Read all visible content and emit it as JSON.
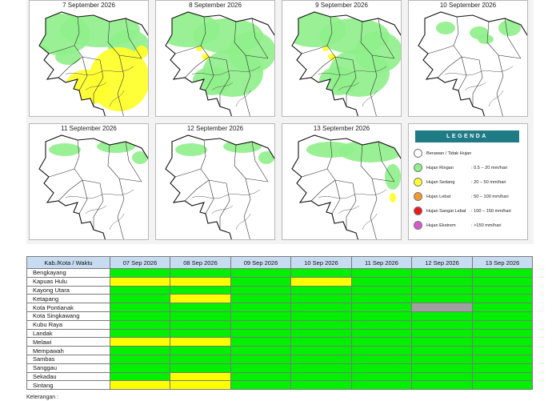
{
  "maps": [
    {
      "date": "7 September 2026",
      "level": "high"
    },
    {
      "date": "8 September 2026",
      "level": "mid"
    },
    {
      "date": "9 September 2026",
      "level": "mid"
    },
    {
      "date": "10 September 2026",
      "level": "low"
    },
    {
      "date": "11 September 2026",
      "level": "min"
    },
    {
      "date": "12 September 2026",
      "level": "min"
    },
    {
      "date": "13 September 2026",
      "level": "lowmid"
    }
  ],
  "legend": {
    "title": "LEGENDA",
    "items": [
      {
        "label": "Berawan / Tidak Hujan",
        "range": "",
        "color": "#ffffff"
      },
      {
        "label": "Hujan Ringan",
        "range": ": 0.5 – 20 mm/hari",
        "color": "#8ff08a"
      },
      {
        "label": "Hujan Sedang",
        "range": ": 20 – 50 mm/hari",
        "color": "#ffff2e"
      },
      {
        "label": "Hujan Lebat",
        "range": ": 50 – 100 mm/hari",
        "color": "#f59a2a"
      },
      {
        "label": "Hujan Sangat Lebat",
        "range": ": 100 – 150 mm/hari",
        "color": "#e81b1b"
      },
      {
        "label": "Hujan Ekstrem",
        "range": ": >150 mm/hari",
        "color": "#d65bc8"
      }
    ]
  },
  "table": {
    "header": "Kab./Kota / Waktu",
    "dates": [
      "07 Sep 2026",
      "08 Sep 2026",
      "09 Sep 2026",
      "10 Sep 2026",
      "11 Sep 2026",
      "12 Sep 2026",
      "13 Sep 2026"
    ],
    "colors": {
      "G": "#00f000",
      "Y": "#ffff00",
      "X": "#a0a0a0",
      "W": "#ffffff"
    },
    "rows": [
      {
        "name": "Bengkayang",
        "cells": [
          "G",
          "G",
          "G",
          "G",
          "G",
          "G",
          "G"
        ]
      },
      {
        "name": "Kapuas Hulu",
        "cells": [
          "Y",
          "Y",
          "G",
          "Y",
          "G",
          "G",
          "G"
        ]
      },
      {
        "name": "Kayong Utara",
        "cells": [
          "G",
          "G",
          "G",
          "G",
          "G",
          "G",
          "G"
        ]
      },
      {
        "name": "Ketapang",
        "cells": [
          "G",
          "Y",
          "G",
          "G",
          "G",
          "G",
          "G"
        ]
      },
      {
        "name": "Kota Pontianak",
        "cells": [
          "G",
          "G",
          "G",
          "G",
          "G",
          "X",
          "G"
        ]
      },
      {
        "name": "Kota Singkawang",
        "cells": [
          "G",
          "G",
          "G",
          "G",
          "G",
          "G",
          "G"
        ]
      },
      {
        "name": "Kubu Raya",
        "cells": [
          "G",
          "G",
          "G",
          "G",
          "G",
          "G",
          "G"
        ]
      },
      {
        "name": "Landak",
        "cells": [
          "G",
          "G",
          "G",
          "G",
          "G",
          "G",
          "G"
        ]
      },
      {
        "name": "Melawi",
        "cells": [
          "Y",
          "Y",
          "G",
          "G",
          "G",
          "G",
          "G"
        ]
      },
      {
        "name": "Mempawah",
        "cells": [
          "G",
          "G",
          "G",
          "G",
          "G",
          "G",
          "G"
        ]
      },
      {
        "name": "Sambas",
        "cells": [
          "G",
          "G",
          "G",
          "G",
          "G",
          "G",
          "G"
        ]
      },
      {
        "name": "Sanggau",
        "cells": [
          "G",
          "G",
          "G",
          "G",
          "G",
          "G",
          "G"
        ]
      },
      {
        "name": "Sekadau",
        "cells": [
          "G",
          "Y",
          "G",
          "G",
          "G",
          "G",
          "G"
        ]
      },
      {
        "name": "Sintang",
        "cells": [
          "Y",
          "Y",
          "G",
          "G",
          "G",
          "G",
          "G"
        ]
      }
    ]
  },
  "footnote": "Keterangan :"
}
